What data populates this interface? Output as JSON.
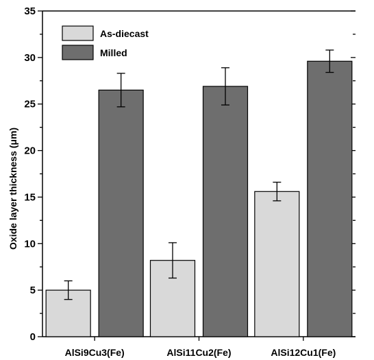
{
  "chart_data": {
    "type": "bar",
    "categories": [
      "AlSi9Cu3(Fe)",
      "AlSi11Cu2(Fe)",
      "AlSi12Cu1(Fe)"
    ],
    "series": [
      {
        "name": "As-diecast",
        "values": [
          5.0,
          8.2,
          15.6
        ],
        "errors": [
          1.0,
          1.9,
          1.0
        ],
        "color": "#d9d9d9"
      },
      {
        "name": "Milled",
        "values": [
          26.5,
          26.9,
          29.6
        ],
        "errors": [
          1.8,
          2.0,
          1.2
        ],
        "color": "#6e6e6e"
      }
    ],
    "yticks": [
      "0",
      "5",
      "10",
      "15",
      "20",
      "25",
      "30",
      "35"
    ],
    "xlabel": "",
    "ylabel": "Oxide layer thickness (μm)",
    "ylim": [
      0,
      35
    ],
    "legend_position": "top-left",
    "grid": false
  }
}
